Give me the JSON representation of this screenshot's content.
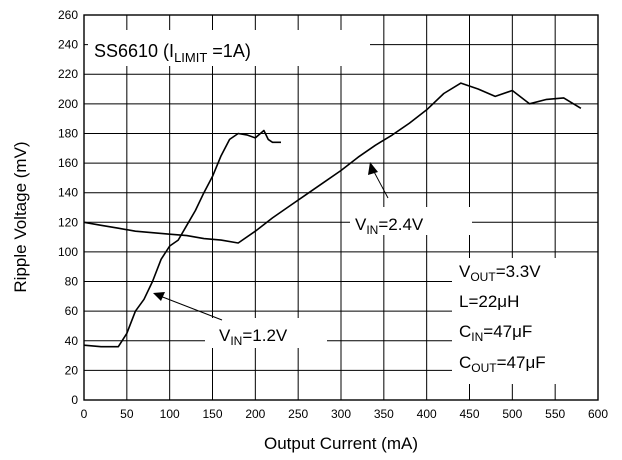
{
  "chart_data": {
    "type": "line",
    "title": "",
    "xlabel": "Output Current (mA)",
    "ylabel": "Ripple Voltage (mV)",
    "xlim": [
      0,
      600
    ],
    "ylim": [
      0,
      260
    ],
    "x_ticks": [
      0,
      50,
      100,
      150,
      200,
      250,
      300,
      350,
      400,
      450,
      500,
      550,
      600
    ],
    "y_ticks": [
      0,
      20,
      40,
      60,
      80,
      100,
      120,
      140,
      160,
      180,
      200,
      220,
      240,
      260
    ],
    "grid": true,
    "series": [
      {
        "name": "VIN=1.2V",
        "x": [
          0,
          20,
          40,
          50,
          60,
          70,
          80,
          90,
          100,
          110,
          120,
          130,
          140,
          150,
          160,
          170,
          180,
          190,
          200,
          210,
          215,
          220,
          230
        ],
        "y": [
          37,
          36,
          36,
          45,
          60,
          68,
          80,
          95,
          104,
          108,
          118,
          128,
          140,
          151,
          165,
          176,
          180,
          179,
          177,
          182,
          176,
          174,
          174
        ]
      },
      {
        "name": "VIN=2.4V",
        "x": [
          0,
          20,
          40,
          60,
          80,
          100,
          120,
          140,
          160,
          180,
          200,
          220,
          240,
          260,
          280,
          300,
          320,
          340,
          360,
          380,
          400,
          420,
          440,
          460,
          480,
          500,
          520,
          540,
          560,
          580
        ],
        "y": [
          120,
          118,
          116,
          114,
          113,
          112,
          111,
          109,
          108,
          106,
          114,
          123,
          131,
          139,
          147,
          155,
          164,
          172,
          179,
          187,
          196,
          207,
          214,
          210,
          205,
          209,
          200,
          203,
          204,
          197
        ]
      }
    ],
    "annotations": {
      "title_box": {
        "main": "SS6610 (I",
        "sub": "LIMIT",
        "rest": " =1A)"
      },
      "label_24": {
        "main": "V",
        "sub": "IN",
        "rest": "=2.4V"
      },
      "label_12": {
        "main": "V",
        "sub": "IN",
        "rest": "=1.2V"
      },
      "conditions": [
        {
          "main": "V",
          "sub": "OUT",
          "rest": "=3.3V"
        },
        {
          "main": "L=22",
          "sub": "",
          "rest": "μH"
        },
        {
          "main": "C",
          "sub": "IN",
          "rest": "=47μF"
        },
        {
          "main": "C",
          "sub": "OUT",
          "rest": "=47μF"
        }
      ]
    }
  }
}
